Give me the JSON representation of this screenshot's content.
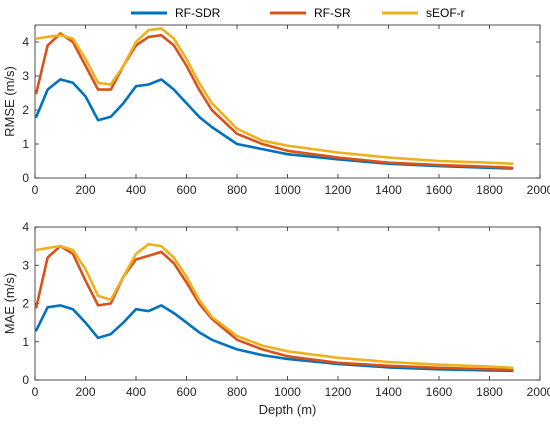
{
  "legend": [
    {
      "label": "RF-SDR",
      "color": "#0072BD"
    },
    {
      "label": "RF-SR",
      "color": "#D95319"
    },
    {
      "label": "sEOF-r",
      "color": "#EDB120"
    }
  ],
  "chart_data": [
    {
      "type": "line",
      "ylabel": "RMSE (m/s)",
      "xlabel": "",
      "xlim": [
        0,
        2000
      ],
      "ylim": [
        0,
        4.5
      ],
      "xticks": [
        0,
        200,
        400,
        600,
        800,
        1000,
        1200,
        1400,
        1600,
        1800,
        2000
      ],
      "yticks": [
        0,
        1,
        2,
        3,
        4
      ],
      "grid": false,
      "x": [
        5,
        50,
        100,
        150,
        200,
        250,
        300,
        350,
        400,
        450,
        500,
        550,
        600,
        650,
        700,
        800,
        900,
        1000,
        1200,
        1400,
        1600,
        1800,
        1890
      ],
      "series": [
        {
          "name": "RF-SDR",
          "color": "#0072BD",
          "values": [
            1.8,
            2.6,
            2.9,
            2.8,
            2.4,
            1.7,
            1.8,
            2.2,
            2.7,
            2.75,
            2.9,
            2.6,
            2.2,
            1.8,
            1.5,
            1.0,
            0.85,
            0.7,
            0.55,
            0.42,
            0.35,
            0.3,
            0.28
          ]
        },
        {
          "name": "RF-SR",
          "color": "#D95319",
          "values": [
            2.5,
            3.9,
            4.25,
            4.0,
            3.3,
            2.6,
            2.6,
            3.3,
            3.9,
            4.15,
            4.2,
            3.9,
            3.3,
            2.6,
            2.0,
            1.3,
            1.0,
            0.8,
            0.6,
            0.45,
            0.38,
            0.33,
            0.3
          ]
        },
        {
          "name": "sEOF-r",
          "color": "#EDB120",
          "values": [
            4.1,
            4.15,
            4.2,
            4.1,
            3.5,
            2.8,
            2.75,
            3.3,
            4.0,
            4.35,
            4.4,
            4.1,
            3.5,
            2.8,
            2.2,
            1.45,
            1.1,
            0.95,
            0.75,
            0.6,
            0.5,
            0.45,
            0.42
          ]
        }
      ]
    },
    {
      "type": "line",
      "ylabel": "MAE (m/s)",
      "xlabel": "Depth (m)",
      "xlim": [
        0,
        2000
      ],
      "ylim": [
        0,
        4
      ],
      "xticks": [
        0,
        200,
        400,
        600,
        800,
        1000,
        1200,
        1400,
        1600,
        1800,
        2000
      ],
      "yticks": [
        0,
        1,
        2,
        3,
        4
      ],
      "grid": false,
      "x": [
        5,
        50,
        100,
        150,
        200,
        250,
        300,
        350,
        400,
        450,
        500,
        550,
        600,
        650,
        700,
        800,
        900,
        1000,
        1200,
        1400,
        1600,
        1800,
        1890
      ],
      "series": [
        {
          "name": "RF-SDR",
          "color": "#0072BD",
          "values": [
            1.3,
            1.9,
            1.95,
            1.85,
            1.5,
            1.1,
            1.2,
            1.5,
            1.85,
            1.8,
            1.95,
            1.75,
            1.5,
            1.25,
            1.05,
            0.8,
            0.65,
            0.55,
            0.42,
            0.33,
            0.28,
            0.25,
            0.24
          ]
        },
        {
          "name": "RF-SR",
          "color": "#D95319",
          "values": [
            1.9,
            3.2,
            3.5,
            3.3,
            2.6,
            1.95,
            2.0,
            2.7,
            3.15,
            3.25,
            3.35,
            3.05,
            2.55,
            2.0,
            1.6,
            1.05,
            0.8,
            0.62,
            0.45,
            0.37,
            0.32,
            0.28,
            0.27
          ]
        },
        {
          "name": "sEOF-r",
          "color": "#EDB120",
          "values": [
            3.4,
            3.45,
            3.5,
            3.4,
            2.9,
            2.2,
            2.1,
            2.7,
            3.3,
            3.55,
            3.5,
            3.2,
            2.7,
            2.1,
            1.65,
            1.15,
            0.9,
            0.75,
            0.58,
            0.47,
            0.4,
            0.35,
            0.32
          ]
        }
      ]
    }
  ]
}
